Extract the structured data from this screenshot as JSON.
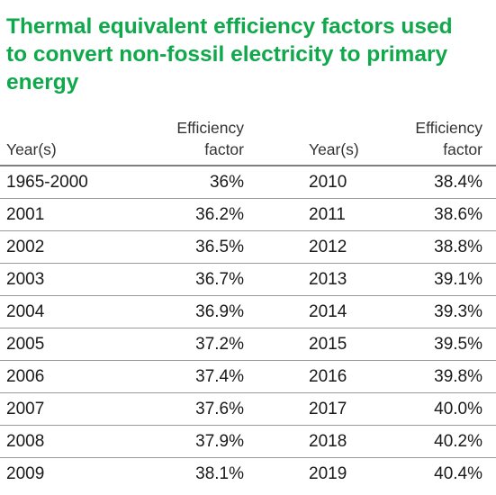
{
  "title": "Thermal equivalent efficiency factors used to convert non-fossil electricity to primary energy",
  "header": {
    "year_left": "Year(s)",
    "eff_left_1": "Efficiency",
    "eff_left_2": "factor",
    "year_right": "Year(s)",
    "eff_right_1": "Efficiency",
    "eff_right_2": "factor"
  },
  "rows": [
    {
      "year_left": "1965-2000",
      "factor_left": "36%",
      "year_right": "2010",
      "factor_right": "38.4%"
    },
    {
      "year_left": "2001",
      "factor_left": "36.2%",
      "year_right": "2011",
      "factor_right": "38.6%"
    },
    {
      "year_left": "2002",
      "factor_left": "36.5%",
      "year_right": "2012",
      "factor_right": "38.8%"
    },
    {
      "year_left": "2003",
      "factor_left": "36.7%",
      "year_right": "2013",
      "factor_right": "39.1%"
    },
    {
      "year_left": "2004",
      "factor_left": "36.9%",
      "year_right": "2014",
      "factor_right": "39.3%"
    },
    {
      "year_left": "2005",
      "factor_left": "37.2%",
      "year_right": "2015",
      "factor_right": "39.5%"
    },
    {
      "year_left": "2006",
      "factor_left": "37.4%",
      "year_right": "2016",
      "factor_right": "39.8%"
    },
    {
      "year_left": "2007",
      "factor_left": "37.6%",
      "year_right": "2017",
      "factor_right": "40.0%"
    },
    {
      "year_left": "2008",
      "factor_left": "37.9%",
      "year_right": "2018",
      "factor_right": "40.2%"
    },
    {
      "year_left": "2009",
      "factor_left": "38.1%",
      "year_right": "2019",
      "factor_right": "40.4%"
    }
  ],
  "colors": {
    "title": "#0fa84a",
    "text": "#1a1a1a",
    "rule": "#9a9a9a"
  }
}
